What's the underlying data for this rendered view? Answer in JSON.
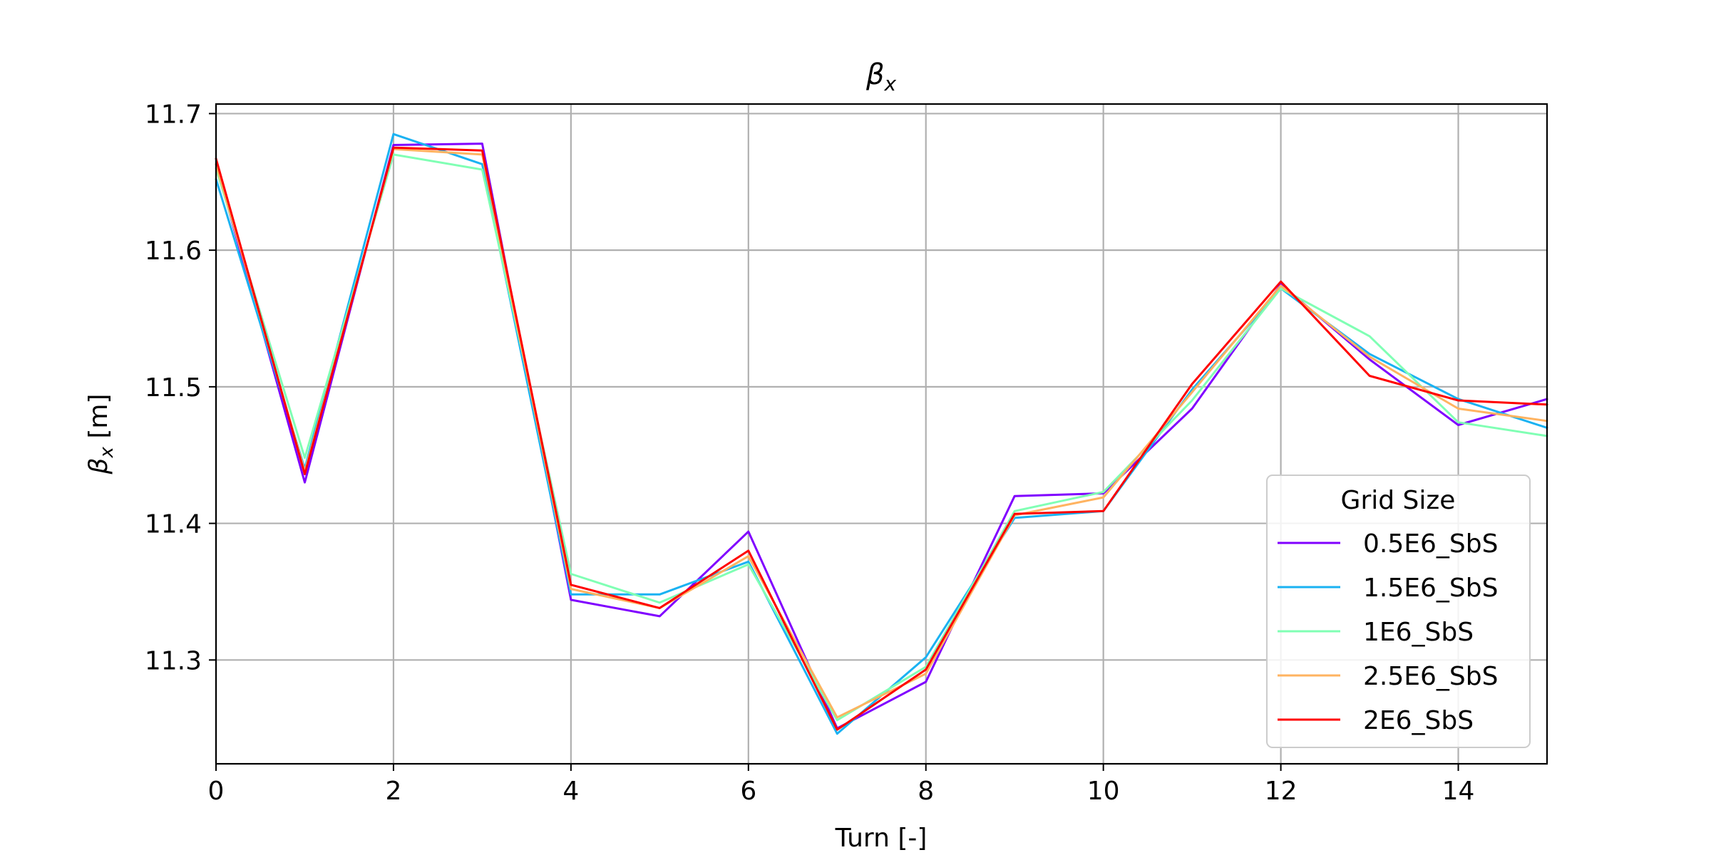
{
  "chart_data": {
    "type": "line",
    "title": "β_x",
    "xlabel": "Turn [-]",
    "ylabel": "β_x [m]",
    "xlim": [
      0,
      15
    ],
    "ylim": [
      11.224,
      11.707
    ],
    "grid": true,
    "legend_title": "Grid Size",
    "legend_position": "lower-right",
    "x_ticks": [
      0,
      2,
      4,
      6,
      8,
      10,
      12,
      14
    ],
    "x_tick_labels": [
      "0",
      "2",
      "4",
      "6",
      "8",
      "10",
      "12",
      "14"
    ],
    "y_ticks": [
      11.3,
      11.4,
      11.5,
      11.6,
      11.7
    ],
    "y_tick_labels": [
      "11.3",
      "11.4",
      "11.5",
      "11.6",
      "11.7"
    ],
    "x": [
      0,
      1,
      2,
      3,
      4,
      5,
      6,
      7,
      8,
      9,
      10,
      11,
      12,
      13,
      14,
      15
    ],
    "series": [
      {
        "name": "0.5E6_SbS",
        "color": "#8000ff",
        "values": [
          11.663,
          11.43,
          11.677,
          11.678,
          11.344,
          11.332,
          11.394,
          11.25,
          11.284,
          11.42,
          11.422,
          11.484,
          11.575,
          11.52,
          11.472,
          11.491
        ]
      },
      {
        "name": "1.5E6_SbS",
        "color": "#1ab2f2",
        "values": [
          11.652,
          11.44,
          11.685,
          11.663,
          11.348,
          11.348,
          11.372,
          11.246,
          11.302,
          11.404,
          11.409,
          11.498,
          11.572,
          11.524,
          11.491,
          11.47
        ]
      },
      {
        "name": "1E6_SbS",
        "color": "#80ffb4",
        "values": [
          11.66,
          11.448,
          11.67,
          11.659,
          11.363,
          11.342,
          11.37,
          11.256,
          11.295,
          11.409,
          11.423,
          11.49,
          11.572,
          11.537,
          11.474,
          11.464
        ]
      },
      {
        "name": "2.5E6_SbS",
        "color": "#ffb360",
        "values": [
          11.663,
          11.438,
          11.674,
          11.67,
          11.352,
          11.338,
          11.376,
          11.258,
          11.29,
          11.406,
          11.419,
          11.496,
          11.574,
          11.522,
          11.484,
          11.475
        ]
      },
      {
        "name": "2E6_SbS",
        "color": "#ff0000",
        "values": [
          11.667,
          11.436,
          11.675,
          11.673,
          11.355,
          11.338,
          11.38,
          11.249,
          11.293,
          11.407,
          11.409,
          11.502,
          11.577,
          11.508,
          11.49,
          11.487
        ]
      }
    ]
  }
}
